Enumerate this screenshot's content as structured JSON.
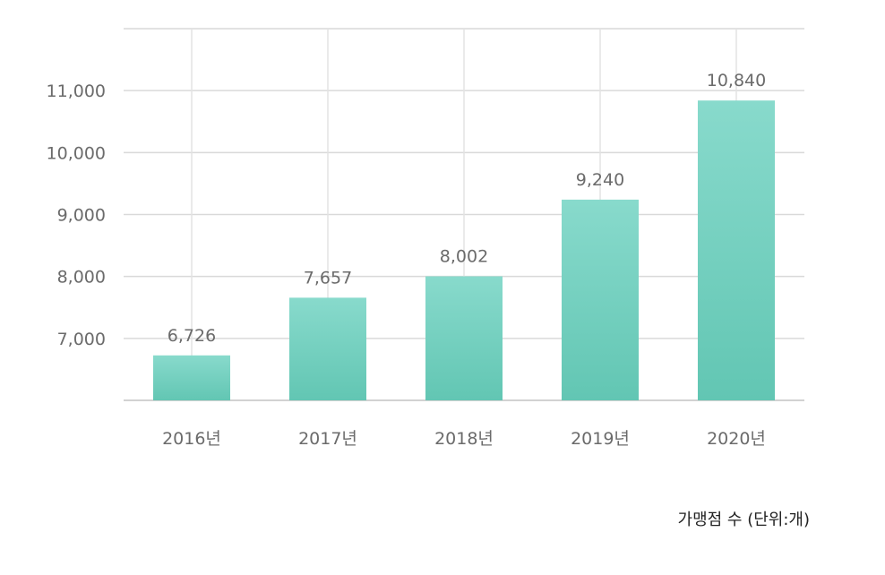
{
  "chart_data": {
    "type": "bar",
    "categories": [
      "2016년",
      "2017년",
      "2018년",
      "2019년",
      "2020년"
    ],
    "values": [
      6726,
      7657,
      8002,
      9240,
      10840
    ],
    "data_labels": [
      "6,726",
      "7,657",
      "8,002",
      "9,240",
      "10,840"
    ],
    "y_ticks": [
      7000,
      8000,
      9000,
      10000,
      11000
    ],
    "y_tick_labels": [
      "7,000",
      "8,000",
      "9,000",
      "10,000",
      "11,000"
    ],
    "ylim": [
      6000,
      12000
    ],
    "grid": true,
    "bar_color_top": "#88dacc",
    "bar_color_bottom": "#62c6b3",
    "caption": "가맹점 수 (단위:개)"
  }
}
